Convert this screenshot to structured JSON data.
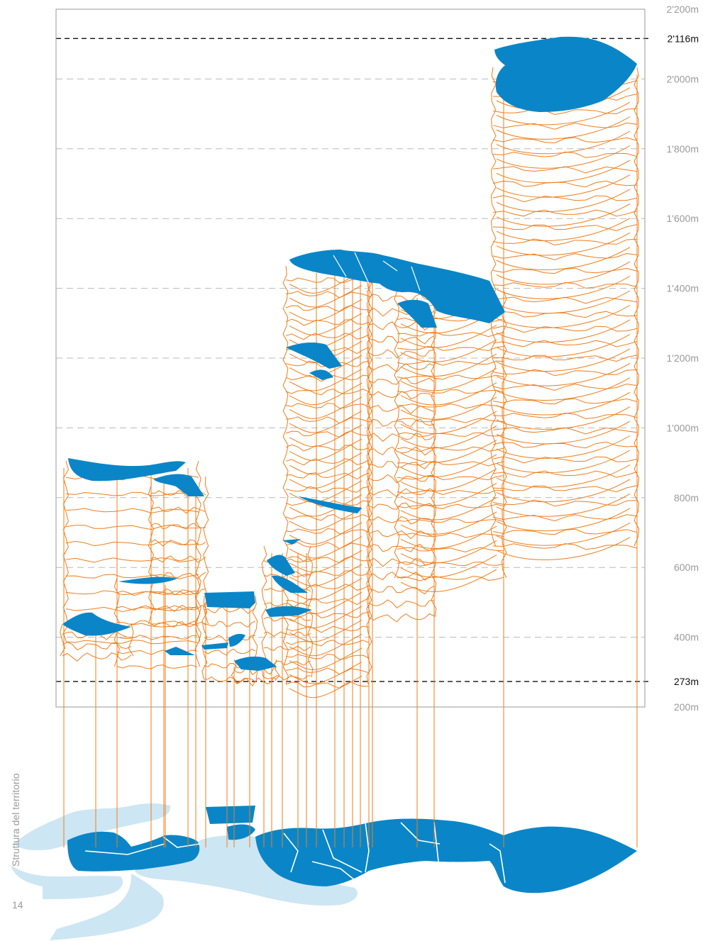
{
  "sidebar": {
    "section_title": "Struttura del territorio",
    "page_number": "14"
  },
  "axis": {
    "ticks": [
      {
        "label": "2'200m",
        "value": 2200,
        "reference": false
      },
      {
        "label": "2'116m",
        "value": 2116,
        "reference": true
      },
      {
        "label": "2'000m",
        "value": 2000,
        "reference": false
      },
      {
        "label": "1'800m",
        "value": 1800,
        "reference": false
      },
      {
        "label": "1'600m",
        "value": 1600,
        "reference": false
      },
      {
        "label": "1'400m",
        "value": 1400,
        "reference": false
      },
      {
        "label": "1'200m",
        "value": 1200,
        "reference": false
      },
      {
        "label": "1'000m",
        "value": 1000,
        "reference": false
      },
      {
        "label": "800m",
        "value": 800,
        "reference": false
      },
      {
        "label": "600m",
        "value": 600,
        "reference": false
      },
      {
        "label": "400m",
        "value": 400,
        "reference": false
      },
      {
        "label": "273m",
        "value": 273,
        "reference": true
      },
      {
        "label": "200m",
        "value": 200,
        "reference": false
      }
    ]
  },
  "colors": {
    "territory": "#0a86c8",
    "water": "#cde6f3",
    "contour": "#ef7d1a",
    "gridline": "#b9b9b9",
    "reference_line": "#111111",
    "frame": "#9a9a9a"
  },
  "stacks": [
    {
      "id": "west-1",
      "base_elevation": 300,
      "top_elevation": 900
    },
    {
      "id": "west-2",
      "base_elevation": 320,
      "top_elevation": 860
    },
    {
      "id": "west-3",
      "base_elevation": 340,
      "top_elevation": 420
    },
    {
      "id": "west-4",
      "base_elevation": 300,
      "top_elevation": 600
    },
    {
      "id": "centre-1",
      "base_elevation": 290,
      "top_elevation": 540
    },
    {
      "id": "centre-2",
      "base_elevation": 280,
      "top_elevation": 330
    },
    {
      "id": "centre-3",
      "base_elevation": 290,
      "top_elevation": 770
    },
    {
      "id": "north-1",
      "base_elevation": 280,
      "top_elevation": 1480
    },
    {
      "id": "north-2",
      "base_elevation": 460,
      "top_elevation": 1480
    },
    {
      "id": "north-3",
      "base_elevation": 620,
      "top_elevation": 1440
    },
    {
      "id": "east-summit",
      "base_elevation": 650,
      "top_elevation": 2116
    }
  ]
}
